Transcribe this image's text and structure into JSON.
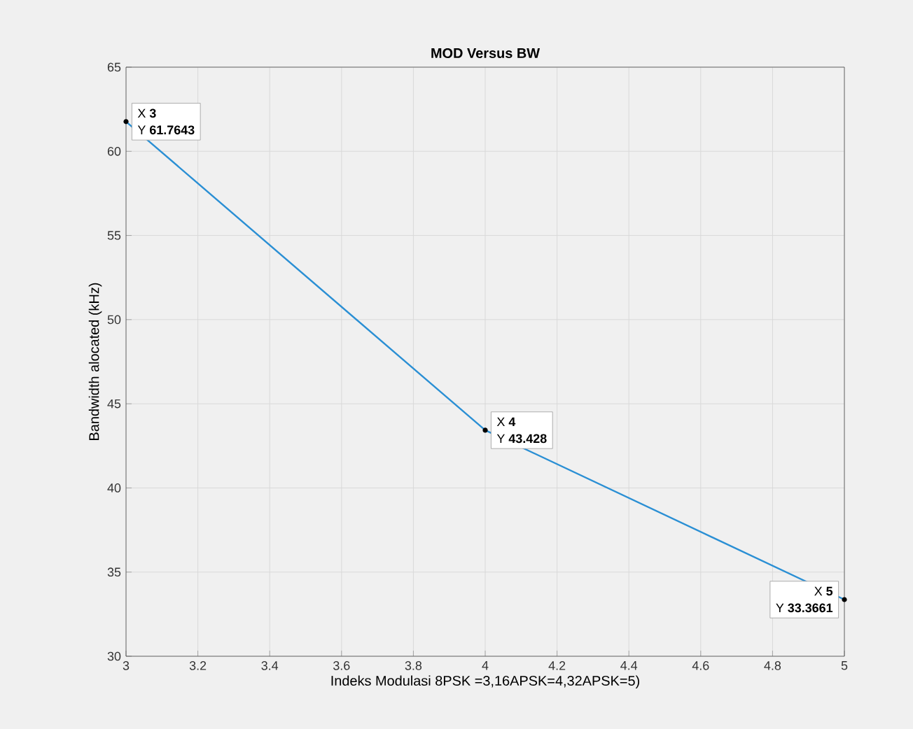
{
  "chart_data": {
    "type": "line",
    "title": "MOD Versus BW",
    "xlabel": "Indeks Modulasi 8PSK =3,16APSK=4,32APSK=5)",
    "ylabel": "Bandwidth alocated (kHz)",
    "x": [
      3,
      4,
      5
    ],
    "series": [
      {
        "color": "#2a8fd4",
        "values": [
          61.7643,
          43.428,
          33.3661
        ]
      }
    ],
    "xlim": [
      3,
      5
    ],
    "xticks": [
      3,
      3.2,
      3.4,
      3.6,
      3.8,
      4,
      4.2,
      4.4,
      4.6,
      4.8,
      5
    ],
    "ylim": [
      30,
      65
    ],
    "yticks": [
      30,
      35,
      40,
      45,
      50,
      55,
      60,
      65
    ],
    "grid": true,
    "marker": "none",
    "line_style": "solid",
    "annotations": [
      {
        "text": "X **3**",
        "x": 3,
        "y": 61.7643
      },
      {
        "text": "Y **61.7643**",
        "x": 3,
        "y": 61.7643
      },
      {
        "text": "X **4**",
        "x": 4,
        "y": 43.428
      },
      {
        "text": "Y **43.428**",
        "x": 4,
        "y": 43.428
      },
      {
        "text": "X **5**",
        "x": 5,
        "y": 33.3661
      },
      {
        "text": "Y **33.3661**",
        "x": 5,
        "y": 33.3661
      }
    ]
  }
}
